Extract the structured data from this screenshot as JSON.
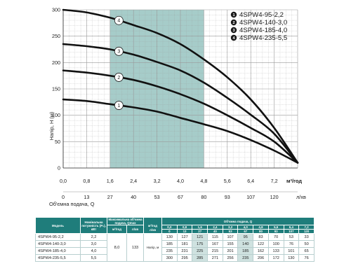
{
  "chart_data": {
    "type": "line",
    "ylabel": "Напір, Н (м)",
    "xlabel_flow_m3h": "м³/год",
    "xlabel_flow_lmin": "Об'ємна подача, Q",
    "xlabel_lmin_unit": "л/хв",
    "ylim": [
      0,
      300
    ],
    "xlim": [
      0,
      8.0
    ],
    "y_ticks": [
      "0",
      "50",
      "100",
      "150",
      "200",
      "250",
      "300"
    ],
    "x_ticks_m3h": [
      "0,0",
      "0,8",
      "1,6",
      "2,4",
      "3,2",
      "4,0",
      "4,8",
      "5,6",
      "6,4",
      "7,2"
    ],
    "x_ticks_lmin": [
      "0",
      "13",
      "27",
      "40",
      "53",
      "67",
      "80",
      "93",
      "107",
      "120"
    ],
    "grid": true,
    "legend_position": "top-right",
    "working_range": [
      1.6,
      4.8
    ],
    "x": [
      0.0,
      0.8,
      1.6,
      2.4,
      3.2,
      4.0,
      4.8,
      5.6,
      6.4,
      7.2,
      8.0
    ],
    "series": [
      {
        "name": "4SPW4-95-2,2",
        "marker": "1",
        "values": [
          130,
          127,
          121,
          115,
          107,
          95,
          83,
          70,
          53,
          33,
          10
        ]
      },
      {
        "name": "4SPW4-140-3,0",
        "marker": "2",
        "values": [
          185,
          181,
          175,
          167,
          155,
          140,
          122,
          100,
          76,
          50,
          10
        ]
      },
      {
        "name": "4SPW4-185-4,0",
        "marker": "3",
        "values": [
          235,
          231,
          225,
          215,
          201,
          185,
          162,
          133,
          101,
          65,
          10
        ]
      },
      {
        "name": "4SPW4-235-5,5",
        "marker": "4",
        "values": [
          300,
          295,
          285,
          271,
          256,
          235,
          206,
          172,
          130,
          76,
          10
        ]
      }
    ],
    "colors": {
      "curve": "#111111",
      "working_range": "#9cc7c3",
      "grid": "#9a9a9a"
    }
  },
  "legend": [
    {
      "marker": "1",
      "label": "4SPW4-95-2,2"
    },
    {
      "marker": "2",
      "label": "4SPW4-140-3,0"
    },
    {
      "marker": "3",
      "label": "4SPW4-185-4,0"
    },
    {
      "marker": "4",
      "label": "4SPW4-235-5,5"
    }
  ],
  "table": {
    "h_model": "Модель",
    "h_power": "Номінальна потужність (P₂), кВт",
    "h_qmax": "Максимальна об'ємна подача, Qmax",
    "h_flow": "Об'ємна подача, Q",
    "h_qmax_m3h": "м³/год",
    "h_qmax_lmin": "л/хв",
    "unit_m3h": "м³/год",
    "unit_lmin": "л/хв",
    "flow_m3h": [
      "0,0",
      "0,8",
      "1,6",
      "2,4",
      "3,2",
      "4,0",
      "4,8",
      "5,6",
      "6,4",
      "7,2"
    ],
    "flow_lmin": [
      "0",
      "13",
      "27",
      "40",
      "53",
      "67",
      "80",
      "93",
      "107",
      "120"
    ],
    "qmax_m3h": "8,0",
    "qmax_lmin": "133",
    "head_label": "Напір, м",
    "rows": [
      {
        "model": "4SPW4-95-2,2",
        "power": "2,2",
        "heads": [
          "130",
          "127",
          "121",
          "115",
          "107",
          "95",
          "83",
          "70",
          "53",
          "33"
        ]
      },
      {
        "model": "4SPW4-140-3,0",
        "power": "3,0",
        "heads": [
          "185",
          "181",
          "175",
          "167",
          "155",
          "140",
          "122",
          "100",
          "76",
          "50"
        ]
      },
      {
        "model": "4SPW4-185-4,0",
        "power": "4,0",
        "heads": [
          "235",
          "231",
          "225",
          "215",
          "201",
          "185",
          "162",
          "133",
          "101",
          "65"
        ]
      },
      {
        "model": "4SPW4-235-5,5",
        "power": "5,5",
        "heads": [
          "300",
          "295",
          "285",
          "271",
          "256",
          "235",
          "206",
          "172",
          "130",
          "76"
        ]
      }
    ]
  }
}
